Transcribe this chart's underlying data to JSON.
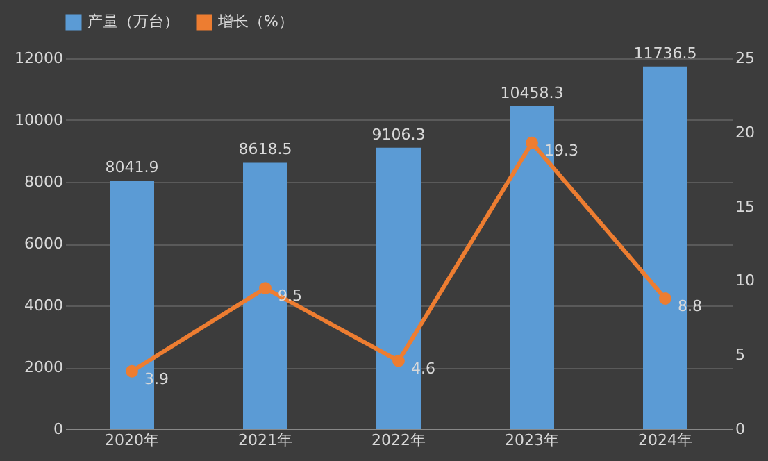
{
  "chart_data": {
    "type": "bar",
    "categories": [
      "2020年",
      "2021年",
      "2022年",
      "2023年",
      "2024年"
    ],
    "series": [
      {
        "name": "产量（万台）",
        "color": "#5b9bd5",
        "values": [
          8041.9,
          8618.5,
          9106.3,
          10458.3,
          11736.5
        ]
      },
      {
        "name": "增长（%）",
        "type": "line",
        "axis": "y2",
        "color": "#ed7d31",
        "values": [
          3.9,
          9.5,
          4.6,
          19.3,
          8.8
        ]
      }
    ],
    "ylim": [
      0,
      12000
    ],
    "yticks": [
      0,
      2000,
      4000,
      6000,
      8000,
      10000,
      12000
    ],
    "y2lim": [
      0,
      25
    ],
    "y2ticks": [
      0,
      5,
      10,
      15,
      20,
      25
    ],
    "data_labels": true,
    "legend": "top",
    "grid": "y",
    "marker": "circle",
    "line_style": "solid"
  }
}
